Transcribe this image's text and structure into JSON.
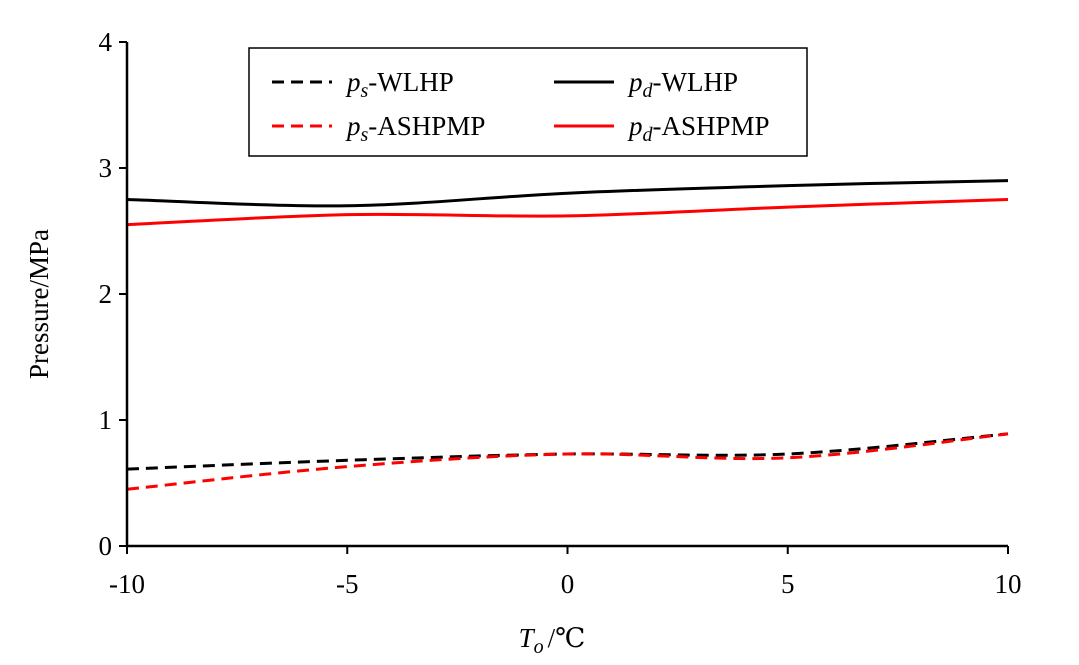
{
  "chart_data": {
    "type": "line",
    "title": "",
    "xlabel": {
      "main": "T",
      "sub": "o",
      "suffix": "/℃"
    },
    "ylabel": "Pressure/MPa",
    "xlim": [
      -10,
      10
    ],
    "ylim": [
      0,
      4
    ],
    "x_ticks": [
      -10,
      -5,
      0,
      5,
      10
    ],
    "x_tick_labels": [
      "-10",
      "-5",
      "0",
      "5",
      "10"
    ],
    "y_ticks": [
      0,
      1,
      2,
      3,
      4
    ],
    "y_tick_labels": [
      "0",
      "1",
      "2",
      "3",
      "4"
    ],
    "grid": false,
    "legend_position": "top-left",
    "series": [
      {
        "key": "ps_wlhp",
        "label": {
          "main": "p",
          "sub": "s",
          "suffix": "-WLHP"
        },
        "color": "#000000",
        "dash": true,
        "x": [
          -10,
          -5,
          0,
          5,
          10
        ],
        "y": [
          0.61,
          0.68,
          0.73,
          0.73,
          0.89
        ]
      },
      {
        "key": "ps_ashpmp",
        "label": {
          "main": "p",
          "sub": "s",
          "suffix": "-ASHPMP"
        },
        "color": "#ff0000",
        "dash": true,
        "x": [
          -10,
          -5,
          0,
          5,
          10
        ],
        "y": [
          0.45,
          0.63,
          0.73,
          0.7,
          0.89
        ]
      },
      {
        "key": "pd_wlhp",
        "label": {
          "main": "p",
          "sub": "d",
          "suffix": "-WLHP"
        },
        "color": "#000000",
        "dash": false,
        "x": [
          -10,
          -5,
          0,
          5,
          10
        ],
        "y": [
          2.75,
          2.7,
          2.8,
          2.86,
          2.9
        ]
      },
      {
        "key": "pd_ashpmp",
        "label": {
          "main": "p",
          "sub": "d",
          "suffix": "-ASHPMP"
        },
        "color": "#ff0000",
        "dash": false,
        "x": [
          -10,
          -5,
          0,
          5,
          10
        ],
        "y": [
          2.55,
          2.63,
          2.62,
          2.69,
          2.75
        ]
      }
    ]
  }
}
